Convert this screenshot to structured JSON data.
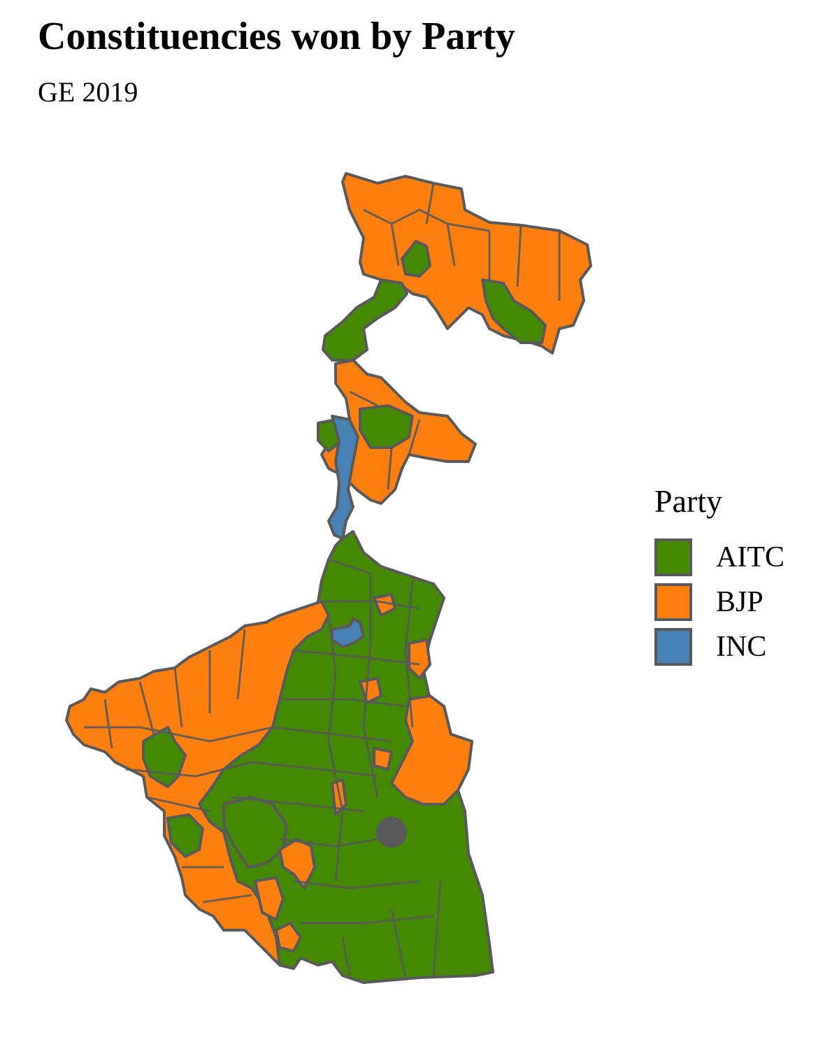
{
  "title": "Constituencies won by Party",
  "subtitle": "GE 2019",
  "legend": {
    "title": "Party",
    "items": [
      {
        "label": "AITC",
        "color": "#438a00"
      },
      {
        "label": "BJP",
        "color": "#ff7f0e"
      },
      {
        "label": "INC",
        "color": "#4682b4"
      }
    ]
  },
  "border_color": "#595959"
}
